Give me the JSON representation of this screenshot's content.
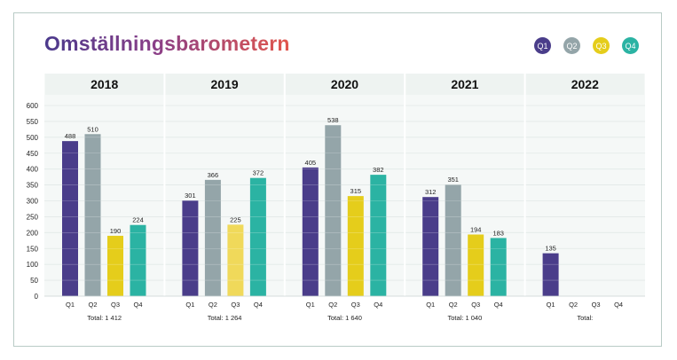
{
  "brand": {
    "title": "Omställningsbarometern"
  },
  "legend": [
    {
      "label": "Q1",
      "color": "#4a3d8a"
    },
    {
      "label": "Q2",
      "color": "#94a5a9"
    },
    {
      "label": "Q3",
      "color": "#e5cd1b"
    },
    {
      "label": "Q4",
      "color": "#2bb3a3"
    }
  ],
  "chart_data": {
    "type": "bar",
    "ylim": [
      0,
      600
    ],
    "yticks": [
      0,
      50,
      100,
      150,
      200,
      250,
      300,
      350,
      400,
      450,
      500,
      550,
      600
    ],
    "grid": true,
    "legend_position": "top-right",
    "groups": [
      {
        "year": "2018",
        "total_label": "Total: 1 412",
        "bars": [
          {
            "category": "Q1",
            "value": 488,
            "label": "488",
            "color": "#4a3d8a"
          },
          {
            "category": "Q2",
            "value": 510,
            "label": "510",
            "color": "#94a5a9"
          },
          {
            "category": "Q3",
            "value": 190,
            "label": "190",
            "color": "#e5cd1b"
          },
          {
            "category": "Q4",
            "value": 224,
            "label": "224",
            "color": "#2bb3a3"
          }
        ]
      },
      {
        "year": "2019",
        "total_label": "Total: 1 264",
        "bars": [
          {
            "category": "Q1",
            "value": 301,
            "label": "301",
            "color": "#4a3d8a"
          },
          {
            "category": "Q2",
            "value": 366,
            "label": "366",
            "color": "#94a5a9"
          },
          {
            "category": "Q3",
            "value": 225,
            "label": "225",
            "color": "#f0d95a"
          },
          {
            "category": "Q4",
            "value": 372,
            "label": "372",
            "color": "#2bb3a3"
          }
        ]
      },
      {
        "year": "2020",
        "total_label": "Total: 1 640",
        "bars": [
          {
            "category": "Q1",
            "value": 405,
            "label": "405",
            "color": "#4a3d8a"
          },
          {
            "category": "Q2",
            "value": 538,
            "label": "538",
            "color": "#94a5a9"
          },
          {
            "category": "Q3",
            "value": 315,
            "label": "315",
            "color": "#e5cd1b"
          },
          {
            "category": "Q4",
            "value": 382,
            "label": "382",
            "color": "#2bb3a3"
          }
        ]
      },
      {
        "year": "2021",
        "total_label": "Total: 1 040",
        "bars": [
          {
            "category": "Q1",
            "value": 312,
            "label": "312",
            "color": "#4a3d8a"
          },
          {
            "category": "Q2",
            "value": 351,
            "label": "351",
            "color": "#94a5a9"
          },
          {
            "category": "Q3",
            "value": 194,
            "label": "194",
            "color": "#e5cd1b"
          },
          {
            "category": "Q4",
            "value": 183,
            "label": "183",
            "color": "#2bb3a3"
          }
        ]
      },
      {
        "year": "2022",
        "total_label": "Total:",
        "bars": [
          {
            "category": "Q1",
            "value": 135,
            "label": "135",
            "color": "#4a3d8a"
          },
          {
            "category": "Q2",
            "value": null,
            "label": "",
            "color": "#94a5a9"
          },
          {
            "category": "Q3",
            "value": null,
            "label": "",
            "color": "#e5cd1b"
          },
          {
            "category": "Q4",
            "value": null,
            "label": "",
            "color": "#2bb3a3"
          }
        ]
      }
    ]
  }
}
